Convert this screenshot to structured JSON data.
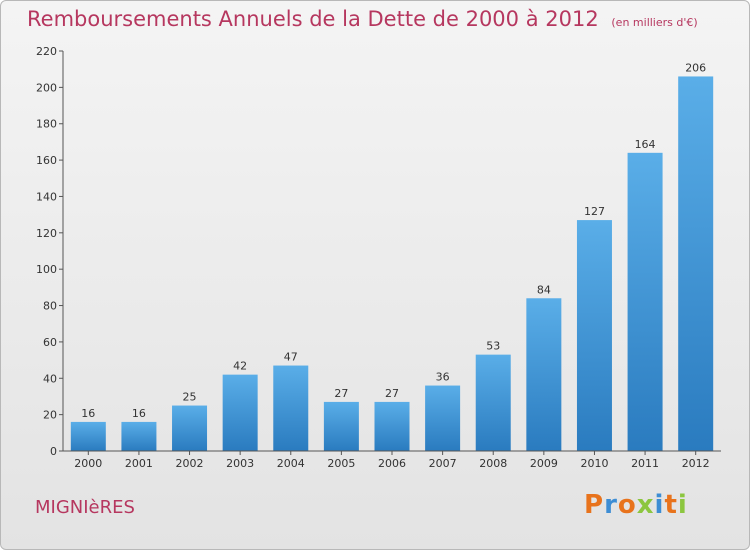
{
  "header": {
    "title": "Remboursements Annuels de la Dette de 2000 à 2012",
    "unit": "(en milliers d'€)"
  },
  "footer": {
    "commune": "MIGNIèRES",
    "logo": "Proxiti"
  },
  "colors": {
    "title": "#b6375f",
    "bar_top": "#5aaee8",
    "bar_bottom": "#2a7bbf",
    "logo_letters": [
      "#e8731c",
      "#3d8dd4",
      "#e8731c",
      "#8cc63f",
      "#3d8dd4",
      "#e8731c",
      "#8cc63f"
    ]
  },
  "chart_data": {
    "type": "bar",
    "title": "Remboursements Annuels de la Dette de 2000 à 2012",
    "subtitle": "(en milliers d'€)",
    "categories": [
      "2000",
      "2001",
      "2002",
      "2003",
      "2004",
      "2005",
      "2006",
      "2007",
      "2008",
      "2009",
      "2010",
      "2011",
      "2012"
    ],
    "values": [
      16,
      16,
      25,
      42,
      47,
      27,
      27,
      36,
      53,
      84,
      127,
      164,
      206
    ],
    "ylim": [
      0,
      220
    ],
    "yticks": [
      0,
      20,
      40,
      60,
      80,
      100,
      120,
      140,
      160,
      180,
      200,
      220
    ],
    "grid": false,
    "data_labels": true
  }
}
